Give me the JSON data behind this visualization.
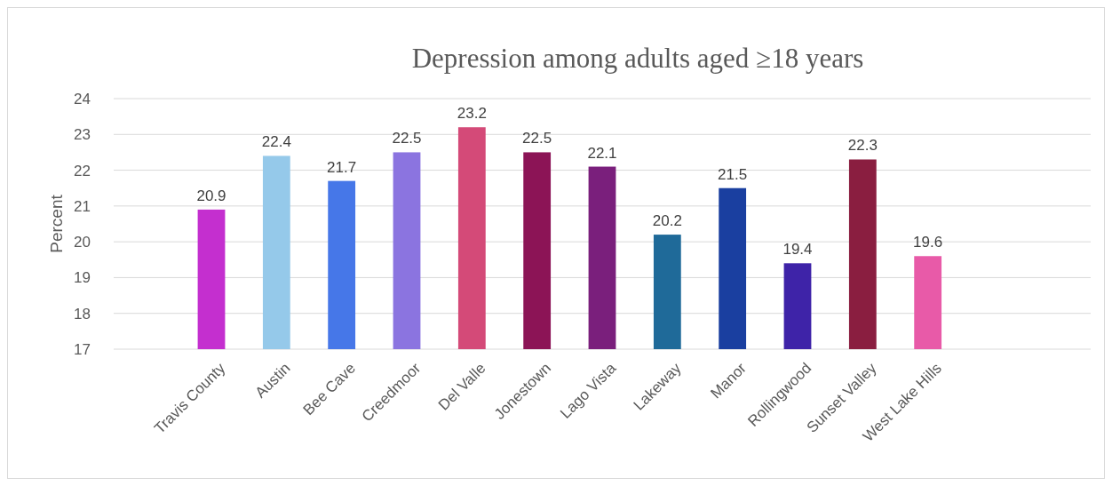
{
  "chart_data": {
    "type": "bar",
    "title": "Depression among adults aged ≥18 years",
    "ylabel": "Percent",
    "categories": [
      null,
      "Travis County",
      "Austin",
      "Bee Cave",
      "Creedmoor",
      "Del Valle",
      "Jonestown",
      "Lago Vista",
      "Lakeway",
      "Manor",
      "Rollingwood",
      "Sunset Valley",
      "West Lake Hills",
      null,
      null
    ],
    "values": [
      null,
      20.9,
      22.4,
      21.7,
      22.5,
      23.2,
      22.5,
      22.1,
      20.2,
      21.5,
      19.4,
      22.3,
      19.6,
      null,
      null
    ],
    "colors": [
      null,
      "#c42fcf",
      "#95c9ea",
      "#4677e8",
      "#8b74e0",
      "#d44a78",
      "#8c1456",
      "#7a1f7c",
      "#1f6a99",
      "#1a3fa0",
      "#3e23a8",
      "#8a1e40",
      "#e85aa8",
      null,
      null
    ],
    "ylim": [
      17,
      24
    ],
    "yticks": [
      17,
      18,
      19,
      20,
      21,
      22,
      23,
      24
    ],
    "grid": "y",
    "data_labels": true
  }
}
